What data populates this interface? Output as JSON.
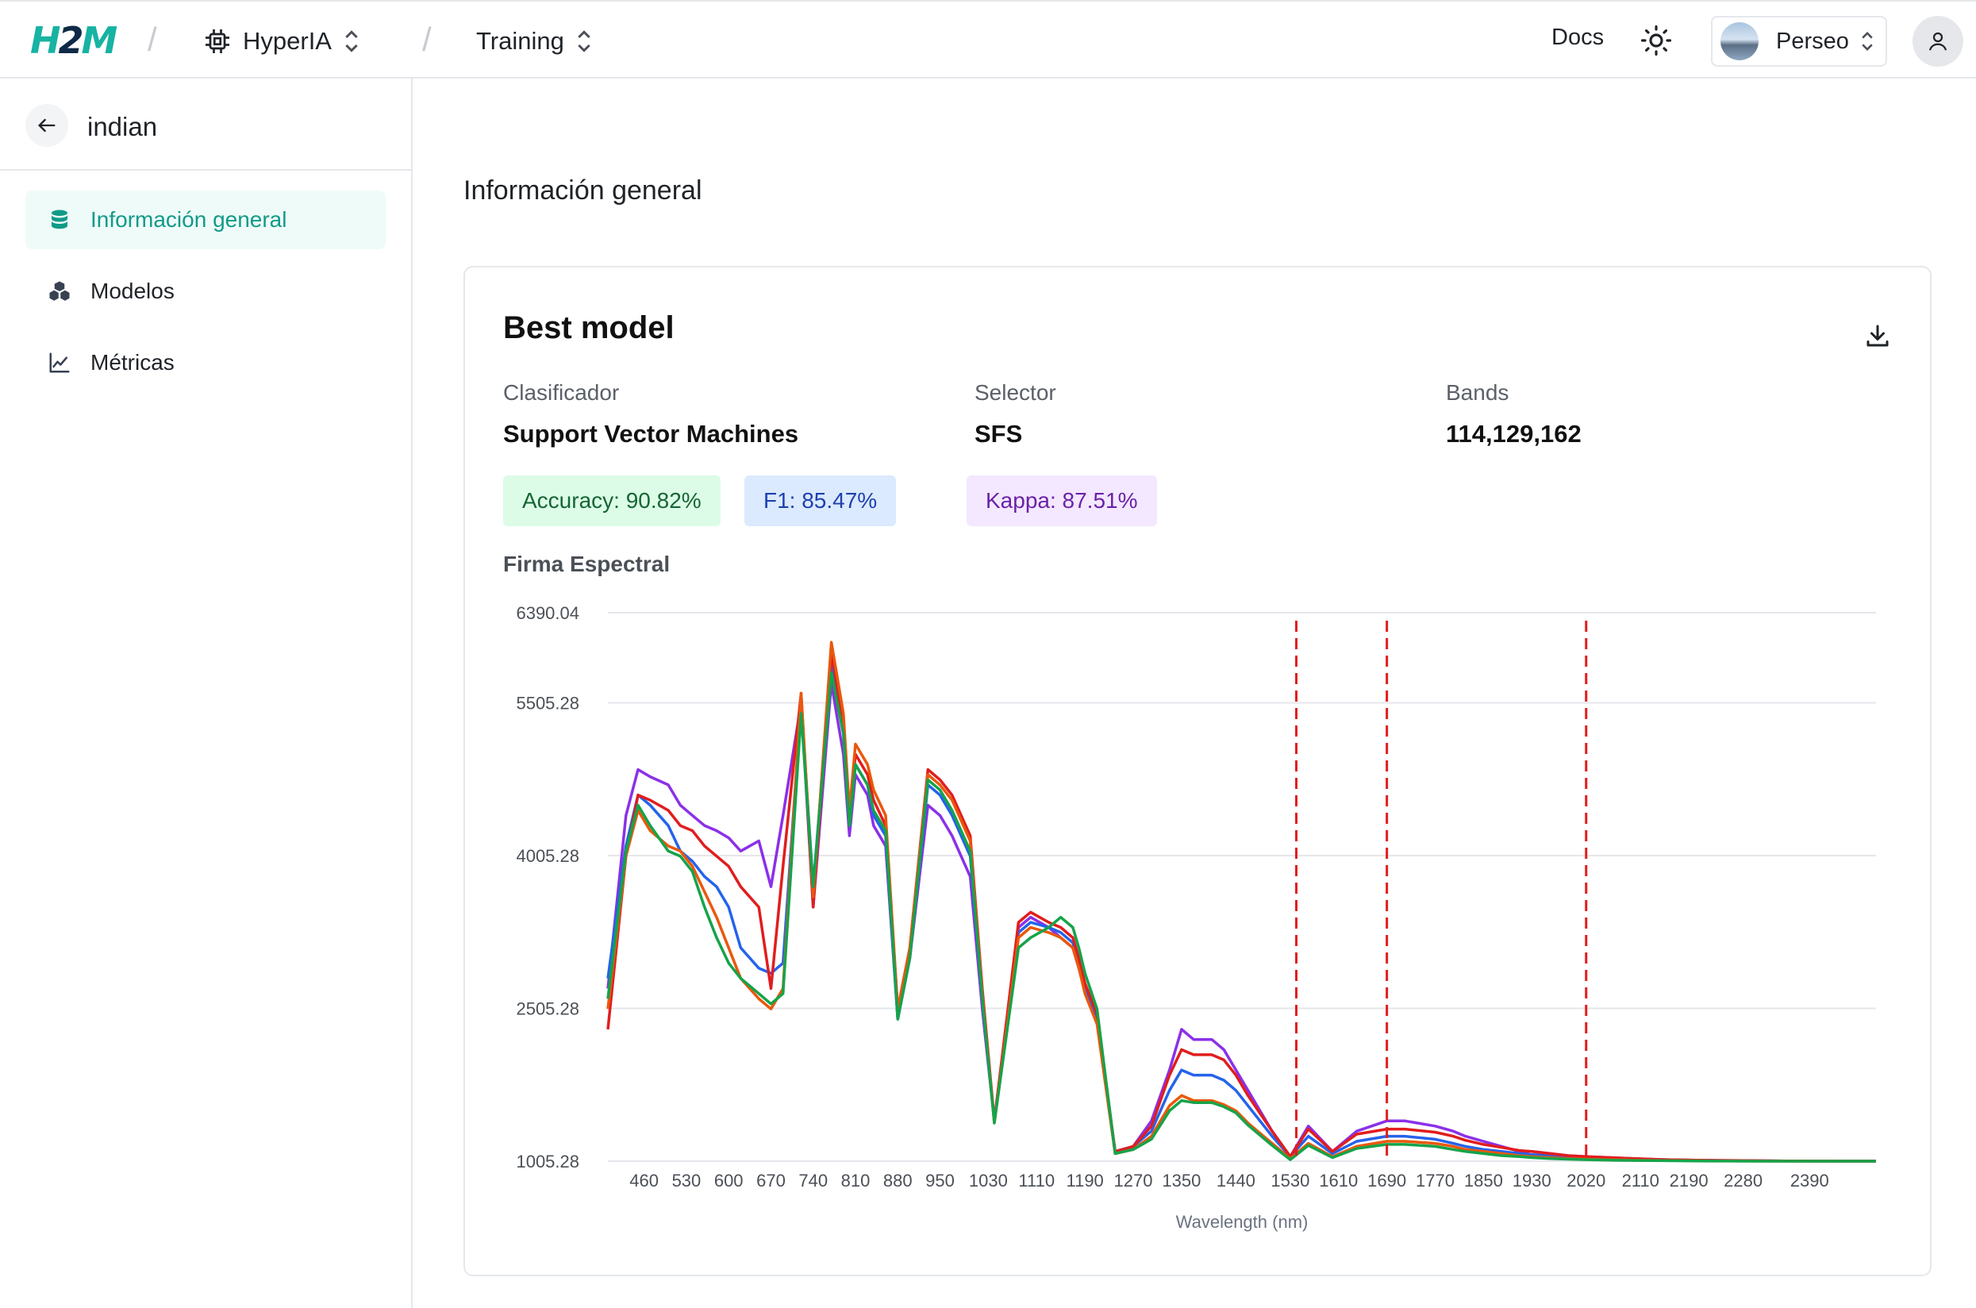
{
  "topbar": {
    "logo": {
      "h": "H",
      "two": "2",
      "m": "M"
    },
    "project": "HyperIA",
    "section": "Training",
    "docs": "Docs",
    "workspace": "Perseo"
  },
  "sidebar": {
    "back_title": "indian",
    "items": [
      {
        "label": "Información general",
        "icon": "database-icon",
        "active": true
      },
      {
        "label": "Modelos",
        "icon": "cubes-icon",
        "active": false
      },
      {
        "label": "Métricas",
        "icon": "line-chart-icon",
        "active": false
      }
    ]
  },
  "main": {
    "heading": "Información general",
    "card": {
      "title": "Best model",
      "fields": [
        {
          "label": "Clasificador",
          "value": "Support Vector Machines"
        },
        {
          "label": "Selector",
          "value": "SFS"
        },
        {
          "label": "Bands",
          "value": "114,129,162"
        }
      ],
      "badges": [
        {
          "text": "Accuracy: 90.82%",
          "color": "#166534"
        },
        {
          "text": "F1: 85.47%",
          "color": "#1e40af"
        },
        {
          "text": "Kappa: 87.51%",
          "color": "#6b21a8"
        }
      ],
      "chart_title": "Firma Espectral"
    }
  },
  "colors": {
    "accent": "#17b3a3",
    "active_bg": "#effbf8",
    "band_marker": "#e11d1d"
  },
  "chart_data": {
    "type": "line",
    "title": "Firma Espectral",
    "xlabel": "Wavelength (nm)",
    "ylabel": "",
    "xlim": [
      400,
      2500
    ],
    "ylim": [
      1005.28,
      6390.04
    ],
    "ytick_labels": [
      "6390.04",
      "5505.28",
      "4005.28",
      "2505.28",
      "1005.28"
    ],
    "ytick_values": [
      6390.04,
      5505.28,
      4005.28,
      2505.28,
      1005.28
    ],
    "xtick_labels": [
      "460",
      "530",
      "600",
      "670",
      "740",
      "810",
      "880",
      "950",
      "1030",
      "1110",
      "1190",
      "1270",
      "1350",
      "1440",
      "1530",
      "1610",
      "1690",
      "1770",
      "1850",
      "1930",
      "2020",
      "2110",
      "2190",
      "2280",
      "2390"
    ],
    "band_markers_nm": [
      1540,
      1690,
      2020
    ],
    "grid": true,
    "x": [
      400,
      430,
      450,
      470,
      500,
      520,
      540,
      560,
      580,
      600,
      620,
      650,
      670,
      690,
      720,
      740,
      770,
      790,
      800,
      810,
      820,
      830,
      840,
      860,
      880,
      900,
      930,
      950,
      970,
      1000,
      1020,
      1040,
      1080,
      1100,
      1130,
      1150,
      1170,
      1180,
      1190,
      1210,
      1240,
      1270,
      1300,
      1330,
      1350,
      1370,
      1400,
      1420,
      1440,
      1460,
      1500,
      1530,
      1560,
      1600,
      1640,
      1690,
      1720,
      1770,
      1800,
      1820,
      1850,
      1880,
      1910,
      1930,
      1960,
      1990,
      2020,
      2060,
      2100,
      2150,
      2200,
      2250,
      2300,
      2350,
      2400,
      2450,
      2500
    ],
    "series": [
      {
        "color": "#8b30e8",
        "values": [
          2700,
          4400,
          4850,
          4780,
          4700,
          4500,
          4400,
          4300,
          4250,
          4180,
          4050,
          4150,
          3700,
          4400,
          5500,
          3500,
          5700,
          5000,
          4200,
          4800,
          4700,
          4600,
          4300,
          4100,
          2400,
          3000,
          4500,
          4400,
          4200,
          3800,
          2500,
          1400,
          3300,
          3400,
          3300,
          3200,
          3100,
          2900,
          2700,
          2400,
          1100,
          1150,
          1400,
          1900,
          2300,
          2200,
          2200,
          2100,
          1900,
          1700,
          1300,
          1050,
          1350,
          1100,
          1300,
          1400,
          1400,
          1350,
          1300,
          1250,
          1200,
          1150,
          1100,
          1100,
          1080,
          1060,
          1050,
          1040,
          1030,
          1020,
          1015,
          1012,
          1010,
          1008,
          1006,
          1005,
          1005
        ]
      },
      {
        "color": "#2563eb",
        "values": [
          2800,
          4100,
          4600,
          4500,
          4300,
          4050,
          3950,
          3800,
          3700,
          3500,
          3100,
          2900,
          2850,
          2950,
          5500,
          3700,
          5900,
          5300,
          4300,
          4900,
          4800,
          4700,
          4400,
          4200,
          2400,
          3000,
          4700,
          4600,
          4400,
          4000,
          2600,
          1400,
          3250,
          3350,
          3300,
          3250,
          3150,
          2950,
          2700,
          2400,
          1100,
          1150,
          1300,
          1700,
          1900,
          1850,
          1850,
          1800,
          1700,
          1550,
          1250,
          1050,
          1250,
          1080,
          1200,
          1250,
          1250,
          1220,
          1180,
          1150,
          1120,
          1100,
          1080,
          1070,
          1060,
          1050,
          1040,
          1030,
          1025,
          1020,
          1015,
          1010,
          1008,
          1006,
          1005,
          1005,
          1005
        ]
      },
      {
        "color": "#e11d1d",
        "values": [
          2300,
          4000,
          4600,
          4550,
          4450,
          4300,
          4250,
          4100,
          4000,
          3900,
          3700,
          3500,
          2700,
          3900,
          5600,
          3500,
          6000,
          5300,
          4400,
          5000,
          4900,
          4800,
          4550,
          4300,
          2500,
          3100,
          4850,
          4750,
          4600,
          4200,
          2700,
          1400,
          3350,
          3450,
          3350,
          3300,
          3200,
          3000,
          2750,
          2450,
          1100,
          1150,
          1350,
          1850,
          2100,
          2050,
          2050,
          2000,
          1850,
          1650,
          1300,
          1050,
          1320,
          1100,
          1270,
          1320,
          1320,
          1290,
          1250,
          1210,
          1170,
          1140,
          1110,
          1100,
          1080,
          1060,
          1050,
          1040,
          1030,
          1020,
          1015,
          1012,
          1010,
          1008,
          1006,
          1005,
          1005
        ]
      },
      {
        "color": "#ea580c",
        "values": [
          2500,
          4000,
          4450,
          4250,
          4100,
          4050,
          3900,
          3650,
          3400,
          3100,
          2800,
          2600,
          2500,
          2700,
          5600,
          3600,
          6100,
          5400,
          4450,
          5100,
          5000,
          4900,
          4650,
          4400,
          2500,
          3100,
          4800,
          4700,
          4550,
          4150,
          2650,
          1380,
          3200,
          3300,
          3250,
          3200,
          3100,
          2900,
          2650,
          2350,
          1080,
          1120,
          1250,
          1550,
          1650,
          1600,
          1600,
          1560,
          1500,
          1380,
          1180,
          1030,
          1180,
          1050,
          1150,
          1200,
          1200,
          1180,
          1150,
          1120,
          1100,
          1080,
          1060,
          1050,
          1040,
          1030,
          1025,
          1020,
          1015,
          1012,
          1010,
          1008,
          1006,
          1005,
          1005,
          1005,
          1005
        ]
      },
      {
        "color": "#16a34a",
        "values": [
          2600,
          4050,
          4500,
          4300,
          4050,
          4000,
          3850,
          3500,
          3200,
          2950,
          2800,
          2650,
          2550,
          2650,
          5400,
          3700,
          5800,
          5200,
          4300,
          4900,
          4800,
          4700,
          4450,
          4250,
          2400,
          3000,
          4750,
          4650,
          4450,
          4050,
          2600,
          1380,
          3100,
          3200,
          3300,
          3400,
          3300,
          3100,
          2850,
          2500,
          1080,
          1120,
          1220,
          1500,
          1600,
          1580,
          1580,
          1540,
          1480,
          1360,
          1160,
          1020,
          1160,
          1040,
          1130,
          1170,
          1170,
          1150,
          1120,
          1100,
          1080,
          1060,
          1050,
          1040,
          1030,
          1025,
          1020,
          1015,
          1012,
          1010,
          1008,
          1006,
          1005,
          1005,
          1005,
          1005,
          1005
        ]
      }
    ]
  }
}
